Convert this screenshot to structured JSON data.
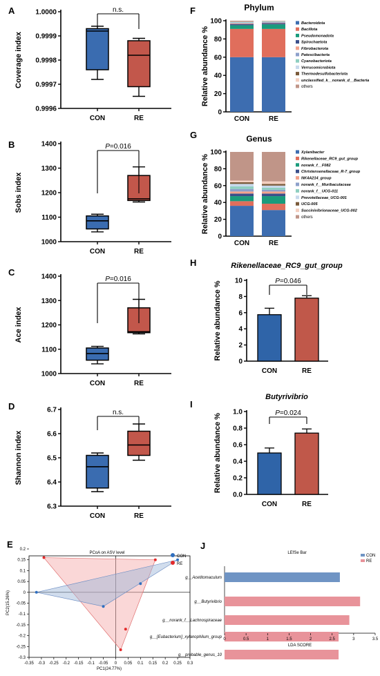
{
  "colors": {
    "con": "#2f64a8",
    "re": "#c0584a",
    "con_box": "#3a6cb0",
    "re_box": "#c2574b",
    "pcoa_con": "#2f6fbf",
    "pcoa_re": "#e32b2b"
  },
  "panel_labels": {
    "A": "A",
    "B": "B",
    "C": "C",
    "D": "D",
    "E": "E",
    "F": "F",
    "G": "G",
    "H": "H",
    "I": "I",
    "J": "J"
  },
  "panels": {
    "A": {
      "ylabel": "Coverage index",
      "categories": [
        "CON",
        "RE"
      ],
      "ylim": [
        0.9996,
        1.0
      ],
      "yticks": [
        "0.9996",
        "0.9997",
        "0.9998",
        "0.9999",
        "1.0000"
      ],
      "significance": "n.s.",
      "boxes": [
        {
          "name": "CON",
          "min": 0.99972,
          "q1": 0.99976,
          "median": 0.99992,
          "q3": 0.99993,
          "max": 0.99994
        },
        {
          "name": "RE",
          "min": 0.99965,
          "q1": 0.99969,
          "median": 0.99982,
          "q3": 0.99988,
          "max": 0.99989
        }
      ]
    },
    "B": {
      "ylabel": "Sobs index",
      "categories": [
        "CON",
        "RE"
      ],
      "ylim": [
        1000,
        1400
      ],
      "yticks": [
        "1000",
        "1100",
        "1200",
        "1300",
        "1400"
      ],
      "significance": "P=0.016",
      "boxes": [
        {
          "name": "CON",
          "min": 1040,
          "q1": 1052,
          "median": 1085,
          "q3": 1105,
          "max": 1112
        },
        {
          "name": "RE",
          "min": 1162,
          "q1": 1168,
          "median": 1175,
          "q3": 1270,
          "max": 1305
        }
      ]
    },
    "C": {
      "ylabel": "Ace index",
      "categories": [
        "CON",
        "RE"
      ],
      "ylim": [
        1000,
        1400
      ],
      "yticks": [
        "1000",
        "1100",
        "1200",
        "1300",
        "1400"
      ],
      "significance": "P=0.016",
      "boxes": [
        {
          "name": "CON",
          "min": 1040,
          "q1": 1055,
          "median": 1082,
          "q3": 1105,
          "max": 1112
        },
        {
          "name": "RE",
          "min": 1163,
          "q1": 1168,
          "median": 1172,
          "q3": 1270,
          "max": 1305
        }
      ]
    },
    "D": {
      "ylabel": "Shannon index",
      "categories": [
        "CON",
        "RE"
      ],
      "ylim": [
        6.3,
        6.7
      ],
      "yticks": [
        "6.3",
        "6.4",
        "6.5",
        "6.6",
        "6.7"
      ],
      "significance": "n.s.",
      "boxes": [
        {
          "name": "CON",
          "min": 6.36,
          "q1": 6.375,
          "median": 6.463,
          "q3": 6.51,
          "max": 6.52
        },
        {
          "name": "RE",
          "min": 6.49,
          "q1": 6.51,
          "median": 6.553,
          "q3": 6.61,
          "max": 6.64
        }
      ]
    },
    "E": {
      "title": "PCoA on ASV level",
      "xlabel": "PC1(24.77%)",
      "ylabel": "PC2(15.26%)",
      "xlim": [
        -0.35,
        0.3
      ],
      "ylim": [
        -0.3,
        0.2
      ],
      "xticks": [
        "-0.35",
        "-0.3",
        "-0.25",
        "-0.2",
        "-0.15",
        "-0.1",
        "-0.05",
        "0",
        "0.05",
        "0.1",
        "0.15",
        "0.2",
        "0.25",
        "0.3"
      ],
      "yticks": [
        "0.2",
        "0.15",
        "0.1",
        "0.05",
        "0",
        "-0.05",
        "-0.1",
        "-0.15",
        "-0.2",
        "-0.25",
        "-0.3"
      ],
      "legend": [
        "CON",
        "RE"
      ],
      "con_points": [
        [
          -0.32,
          0.0
        ],
        [
          -0.05,
          -0.065
        ],
        [
          0.1,
          0.04
        ],
        [
          0.25,
          0.15
        ]
      ],
      "re_points": [
        [
          -0.29,
          0.16
        ],
        [
          0.16,
          0.15
        ],
        [
          0.04,
          -0.17
        ],
        [
          0.02,
          -0.265
        ]
      ]
    },
    "F": {
      "title": "Phylum",
      "ylabel": "Relative abundance %",
      "categories": [
        "CON",
        "RE"
      ],
      "ylim": [
        0,
        100
      ],
      "yticks": [
        "0",
        "20",
        "40",
        "60",
        "80",
        "100"
      ],
      "series": [
        {
          "name": "Bacteroidota",
          "color": "#3d6db0",
          "values": [
            60,
            60
          ]
        },
        {
          "name": "Bacillota",
          "color": "#e06e5c",
          "values": [
            31,
            31
          ]
        },
        {
          "name": "Pseudomonadota",
          "color": "#1a9b7c",
          "values": [
            4,
            5
          ]
        },
        {
          "name": "Spirochaetota",
          "color": "#3b4f8a",
          "values": [
            1.3,
            1.3
          ]
        },
        {
          "name": "Fibrobacterota",
          "color": "#f2a38c",
          "values": [
            0.8,
            0.6
          ]
        },
        {
          "name": "Patescibacteria",
          "color": "#8da0cb",
          "values": [
            0.7,
            0.6
          ]
        },
        {
          "name": "Cyanobacteriota",
          "color": "#8fcfc1",
          "values": [
            0.5,
            0.4
          ]
        },
        {
          "name": "Verrucomicrobiota",
          "color": "#c7d9ec",
          "values": [
            0.4,
            0.4
          ]
        },
        {
          "name": "Thermodesulfobacteriota",
          "color": "#7a5a3a",
          "values": [
            0.3,
            0.2
          ]
        },
        {
          "name": "unclassified_k__norank_d__Bacteria",
          "color": "#f4cfc0",
          "values": [
            0.2,
            0.2
          ]
        },
        {
          "name": "others",
          "color": "#c09588",
          "values": [
            0.8,
            0.3
          ]
        }
      ]
    },
    "G": {
      "title": "Genus",
      "ylabel": "Relative abundance %",
      "categories": [
        "CON",
        "RE"
      ],
      "ylim": [
        0,
        100
      ],
      "yticks": [
        "0",
        "20",
        "40",
        "60",
        "80",
        "100"
      ],
      "series": [
        {
          "name": "Xylanibacter",
          "color": "#3d6db0",
          "values": [
            36,
            31
          ]
        },
        {
          "name": "Rikenellaceae_RC9_gut_group",
          "color": "#e06e5c",
          "values": [
            5.5,
            7.5
          ]
        },
        {
          "name": "norank_f__F082",
          "color": "#1a9b7c",
          "values": [
            6,
            9
          ]
        },
        {
          "name": "Christensenellaceae_R-7_group",
          "color": "#3b4f8a",
          "values": [
            3,
            3
          ]
        },
        {
          "name": "NK4A214_group",
          "color": "#f2a38c",
          "values": [
            2.5,
            2.5
          ]
        },
        {
          "name": "norank_f__Muribaculaceae",
          "color": "#8da0cb",
          "values": [
            3,
            2
          ]
        },
        {
          "name": "norank_f__UCG-011",
          "color": "#8fcfc1",
          "values": [
            3,
            2.5
          ]
        },
        {
          "name": "Prevotellaceae_UCG-001",
          "color": "#c7d9ec",
          "values": [
            3,
            2.5
          ]
        },
        {
          "name": "UCG-005",
          "color": "#7a5a3a",
          "values": [
            2,
            2
          ]
        },
        {
          "name": "Succinivibrionaceae_UCG-002",
          "color": "#f4cfc0",
          "values": [
            2,
            3
          ]
        },
        {
          "name": "others",
          "color": "#c09588",
          "values": [
            34,
            35
          ]
        }
      ]
    },
    "H": {
      "title": "Rikenellaceae_RC9_gut_group",
      "ylabel": "Relative abundance %",
      "categories": [
        "CON",
        "RE"
      ],
      "ylim": [
        0,
        10
      ],
      "yticks": [
        "0",
        "2",
        "4",
        "6",
        "8",
        "10"
      ],
      "significance": "P=0.046",
      "values": [
        5.75,
        7.8
      ],
      "errors": [
        0.8,
        0.3
      ]
    },
    "I": {
      "title": "Butyrivibrio",
      "ylabel": "Relative abundance %",
      "categories": [
        "CON",
        "RE"
      ],
      "ylim": [
        0,
        1.0
      ],
      "yticks": [
        "0.0",
        "0.2",
        "0.4",
        "0.6",
        "0.8",
        "1.0"
      ],
      "significance": "P=0.024",
      "values": [
        0.5,
        0.74
      ],
      "errors": [
        0.06,
        0.05
      ]
    },
    "J": {
      "title": "LEfSe Bar",
      "xlabel": "LDA SCORE",
      "xlim": [
        0,
        3.5
      ],
      "xticks": [
        "0",
        "0.5",
        "1",
        "1.5",
        "2",
        "2.5",
        "3",
        "3.5"
      ],
      "legend": [
        "CON",
        "RE"
      ],
      "bars": [
        {
          "name": "g__Acetitomaculum",
          "group": "CON",
          "value": 2.68,
          "color": "#6f94c4"
        },
        {
          "name": "g__Butyrivibrio",
          "group": "RE",
          "value": 3.15,
          "color": "#e8939a"
        },
        {
          "name": "g__norank_f__Lachnospiraceae",
          "group": "RE",
          "value": 2.9,
          "color": "#e8939a"
        },
        {
          "name": "g__[Eubacterium]_xylanophilum_group",
          "group": "RE",
          "value": 2.65,
          "color": "#e8939a"
        },
        {
          "name": "g__probable_genus_10",
          "group": "RE",
          "value": 2.65,
          "color": "#e8939a"
        }
      ]
    }
  }
}
